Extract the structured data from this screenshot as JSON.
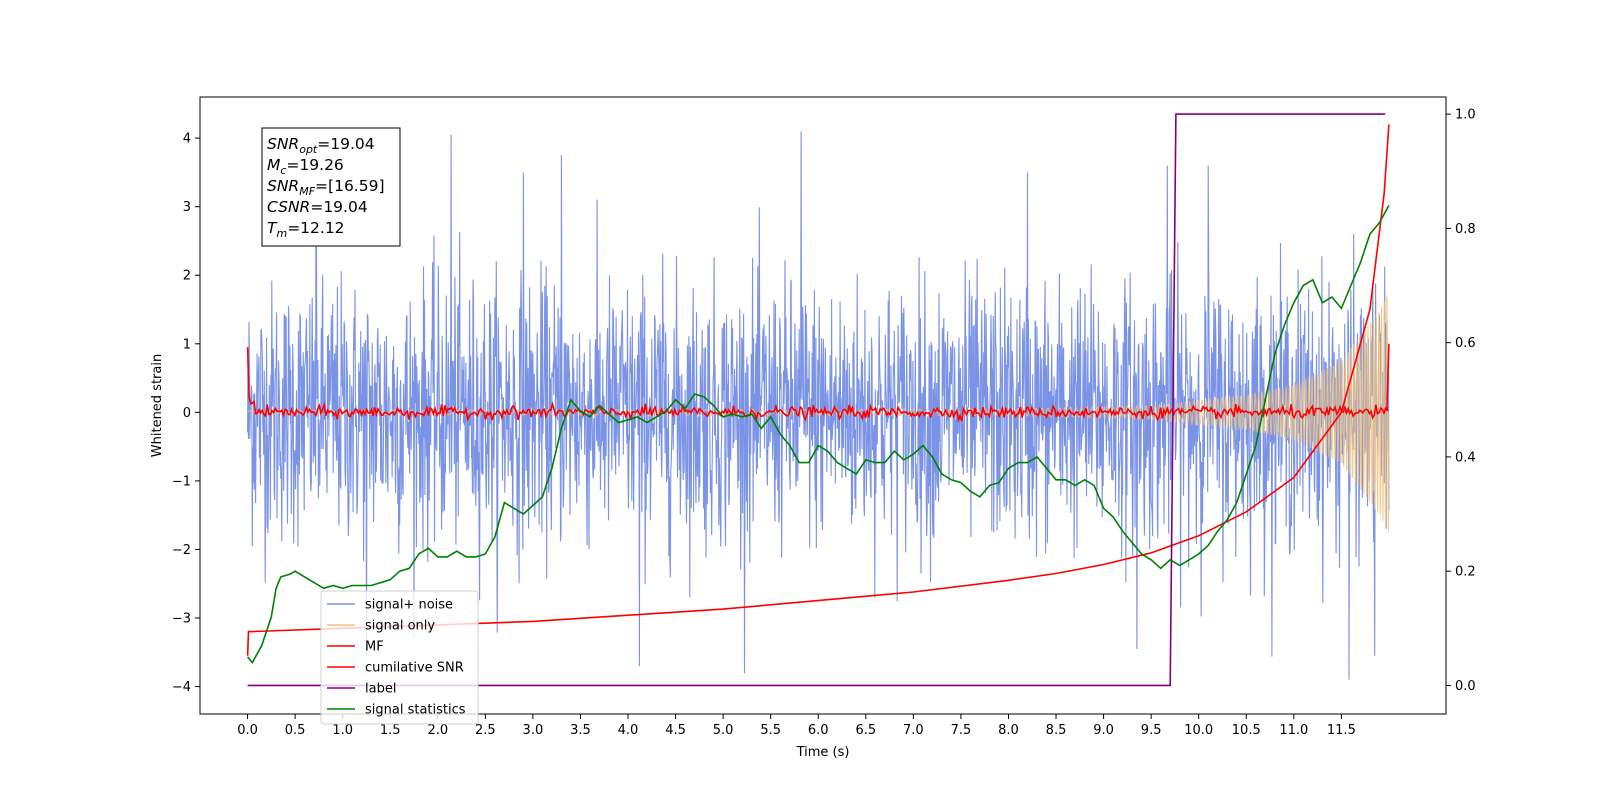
{
  "chart_data": {
    "type": "line",
    "xlabel": "Time (s)",
    "ylabel": "Whitened strain",
    "xlim": [
      -0.5,
      12.6
    ],
    "ylim": [
      -4.4,
      4.6
    ],
    "y2lim": [
      -0.05,
      1.03
    ],
    "x_ticks": [
      "0.0",
      "0.5",
      "1.0",
      "1.5",
      "2.0",
      "2.5",
      "3.0",
      "3.5",
      "4.0",
      "4.5",
      "5.0",
      "5.5",
      "6.0",
      "6.5",
      "7.0",
      "7.5",
      "8.0",
      "8.5",
      "9.0",
      "9.5",
      "10.0",
      "10.5",
      "11.0",
      "11.5"
    ],
    "y_ticks": [
      "4",
      "3",
      "2",
      "1",
      "0",
      "−1",
      "−2",
      "−3",
      "−4"
    ],
    "y2_ticks": [
      "1.0",
      "0.8",
      "0.6",
      "0.4",
      "0.2",
      "0.0"
    ],
    "legend_position": "lower-left",
    "annotation": {
      "lines": [
        {
          "base": "SNR",
          "sub": "opt",
          "text": "=19.04"
        },
        {
          "base": "M",
          "sub": "c",
          "text": "=19.26"
        },
        {
          "base": "SNR",
          "sub": "MF",
          "text": "=[16.59]"
        },
        {
          "base": "CSNR",
          "sub": "",
          "text": "=19.04"
        },
        {
          "base": "T",
          "sub": "m",
          "text": "=12.12"
        }
      ]
    },
    "series": [
      {
        "name": "signal+ noise",
        "axis": "left",
        "color": "#7b93e6",
        "kind": "noise",
        "x_range": [
          0.0,
          12.0
        ],
        "typical_range": [
          -1.8,
          1.8
        ],
        "peak_range": [
          -3.9,
          4.15
        ],
        "notable_peaks": [
          [
            0.72,
            4.15
          ],
          [
            2.14,
            4.05
          ],
          [
            5.82,
            4.1
          ],
          [
            3.3,
            3.75
          ],
          [
            9.67,
            3.6
          ],
          [
            10.1,
            3.6
          ],
          [
            2.9,
            3.5
          ],
          [
            8.2,
            3.5
          ],
          [
            11.58,
            -3.9
          ],
          [
            1.25,
            -3.55
          ],
          [
            4.12,
            -3.7
          ],
          [
            9.35,
            -3.45
          ],
          [
            11.85,
            -3.55
          ]
        ]
      },
      {
        "name": "signal only",
        "axis": "left",
        "color": "#f5c37a",
        "kind": "chirp",
        "x_range": [
          0.0,
          12.0
        ],
        "amplitude_envelope": [
          [
            0.0,
            0.03
          ],
          [
            8.0,
            0.05
          ],
          [
            9.5,
            0.1
          ],
          [
            10.5,
            0.25
          ],
          [
            11.0,
            0.4
          ],
          [
            11.5,
            0.75
          ],
          [
            11.9,
            1.5
          ],
          [
            12.0,
            1.8
          ]
        ]
      },
      {
        "name": "MF",
        "axis": "left",
        "color": "#ff0000",
        "kind": "matched_filter",
        "x_range": [
          0.0,
          12.0
        ],
        "start_value": 0.95,
        "noise_amplitude": 0.06,
        "end_value": 1.0
      },
      {
        "name": "cumilative SNR",
        "axis": "left",
        "color": "#ff0000",
        "points": [
          [
            0.0,
            -3.55
          ],
          [
            0.01,
            -3.2
          ],
          [
            1.0,
            -3.15
          ],
          [
            3.0,
            -3.05
          ],
          [
            5.0,
            -2.87
          ],
          [
            7.0,
            -2.62
          ],
          [
            8.0,
            -2.45
          ],
          [
            8.5,
            -2.35
          ],
          [
            9.0,
            -2.22
          ],
          [
            9.5,
            -2.05
          ],
          [
            10.0,
            -1.8
          ],
          [
            10.5,
            -1.45
          ],
          [
            11.0,
            -0.95
          ],
          [
            11.5,
            0.0
          ],
          [
            11.8,
            1.5
          ],
          [
            11.95,
            3.2
          ],
          [
            12.0,
            4.2
          ]
        ]
      },
      {
        "name": "label",
        "axis": "right",
        "color": "#800080",
        "points": [
          [
            0.0,
            0.0
          ],
          [
            9.7,
            0.0
          ],
          [
            9.76,
            1.0
          ],
          [
            11.96,
            1.0
          ]
        ]
      },
      {
        "name": "signal statistics",
        "axis": "right",
        "color": "#008000",
        "points": [
          [
            0.0,
            0.05
          ],
          [
            0.05,
            0.04
          ],
          [
            0.15,
            0.07
          ],
          [
            0.25,
            0.12
          ],
          [
            0.3,
            0.17
          ],
          [
            0.35,
            0.19
          ],
          [
            0.45,
            0.195
          ],
          [
            0.5,
            0.2
          ],
          [
            0.6,
            0.19
          ],
          [
            0.7,
            0.18
          ],
          [
            0.8,
            0.17
          ],
          [
            0.9,
            0.175
          ],
          [
            1.0,
            0.17
          ],
          [
            1.1,
            0.175
          ],
          [
            1.2,
            0.175
          ],
          [
            1.3,
            0.175
          ],
          [
            1.4,
            0.18
          ],
          [
            1.5,
            0.185
          ],
          [
            1.6,
            0.2
          ],
          [
            1.7,
            0.205
          ],
          [
            1.8,
            0.23
          ],
          [
            1.9,
            0.24
          ],
          [
            2.0,
            0.225
          ],
          [
            2.1,
            0.225
          ],
          [
            2.2,
            0.235
          ],
          [
            2.3,
            0.225
          ],
          [
            2.4,
            0.225
          ],
          [
            2.5,
            0.23
          ],
          [
            2.6,
            0.26
          ],
          [
            2.7,
            0.32
          ],
          [
            2.8,
            0.31
          ],
          [
            2.9,
            0.3
          ],
          [
            3.0,
            0.315
          ],
          [
            3.1,
            0.33
          ],
          [
            3.2,
            0.38
          ],
          [
            3.3,
            0.45
          ],
          [
            3.4,
            0.5
          ],
          [
            3.5,
            0.48
          ],
          [
            3.6,
            0.47
          ],
          [
            3.7,
            0.49
          ],
          [
            3.8,
            0.475
          ],
          [
            3.9,
            0.46
          ],
          [
            4.0,
            0.465
          ],
          [
            4.1,
            0.47
          ],
          [
            4.2,
            0.46
          ],
          [
            4.3,
            0.47
          ],
          [
            4.4,
            0.48
          ],
          [
            4.5,
            0.5
          ],
          [
            4.6,
            0.485
          ],
          [
            4.7,
            0.51
          ],
          [
            4.8,
            0.505
          ],
          [
            4.9,
            0.49
          ],
          [
            5.0,
            0.47
          ],
          [
            5.1,
            0.475
          ],
          [
            5.2,
            0.47
          ],
          [
            5.3,
            0.475
          ],
          [
            5.4,
            0.45
          ],
          [
            5.5,
            0.47
          ],
          [
            5.6,
            0.44
          ],
          [
            5.7,
            0.42
          ],
          [
            5.8,
            0.39
          ],
          [
            5.9,
            0.39
          ],
          [
            6.0,
            0.42
          ],
          [
            6.1,
            0.41
          ],
          [
            6.2,
            0.39
          ],
          [
            6.3,
            0.38
          ],
          [
            6.4,
            0.37
          ],
          [
            6.5,
            0.395
          ],
          [
            6.6,
            0.39
          ],
          [
            6.7,
            0.39
          ],
          [
            6.8,
            0.41
          ],
          [
            6.9,
            0.395
          ],
          [
            7.0,
            0.405
          ],
          [
            7.1,
            0.42
          ],
          [
            7.2,
            0.4
          ],
          [
            7.3,
            0.37
          ],
          [
            7.4,
            0.36
          ],
          [
            7.5,
            0.355
          ],
          [
            7.6,
            0.34
          ],
          [
            7.7,
            0.33
          ],
          [
            7.8,
            0.35
          ],
          [
            7.9,
            0.355
          ],
          [
            8.0,
            0.38
          ],
          [
            8.1,
            0.39
          ],
          [
            8.2,
            0.39
          ],
          [
            8.3,
            0.4
          ],
          [
            8.4,
            0.38
          ],
          [
            8.5,
            0.36
          ],
          [
            8.6,
            0.36
          ],
          [
            8.7,
            0.35
          ],
          [
            8.8,
            0.36
          ],
          [
            8.9,
            0.35
          ],
          [
            9.0,
            0.31
          ],
          [
            9.1,
            0.295
          ],
          [
            9.2,
            0.27
          ],
          [
            9.3,
            0.25
          ],
          [
            9.4,
            0.23
          ],
          [
            9.5,
            0.22
          ],
          [
            9.6,
            0.205
          ],
          [
            9.7,
            0.22
          ],
          [
            9.8,
            0.21
          ],
          [
            9.9,
            0.22
          ],
          [
            10.0,
            0.23
          ],
          [
            10.1,
            0.245
          ],
          [
            10.2,
            0.27
          ],
          [
            10.3,
            0.29
          ],
          [
            10.4,
            0.32
          ],
          [
            10.5,
            0.37
          ],
          [
            10.6,
            0.42
          ],
          [
            10.7,
            0.5
          ],
          [
            10.8,
            0.58
          ],
          [
            10.9,
            0.63
          ],
          [
            11.0,
            0.67
          ],
          [
            11.1,
            0.7
          ],
          [
            11.2,
            0.71
          ],
          [
            11.3,
            0.67
          ],
          [
            11.4,
            0.68
          ],
          [
            11.5,
            0.66
          ],
          [
            11.6,
            0.7
          ],
          [
            11.7,
            0.74
          ],
          [
            11.8,
            0.79
          ],
          [
            11.9,
            0.81
          ],
          [
            12.0,
            0.84
          ]
        ]
      }
    ]
  }
}
